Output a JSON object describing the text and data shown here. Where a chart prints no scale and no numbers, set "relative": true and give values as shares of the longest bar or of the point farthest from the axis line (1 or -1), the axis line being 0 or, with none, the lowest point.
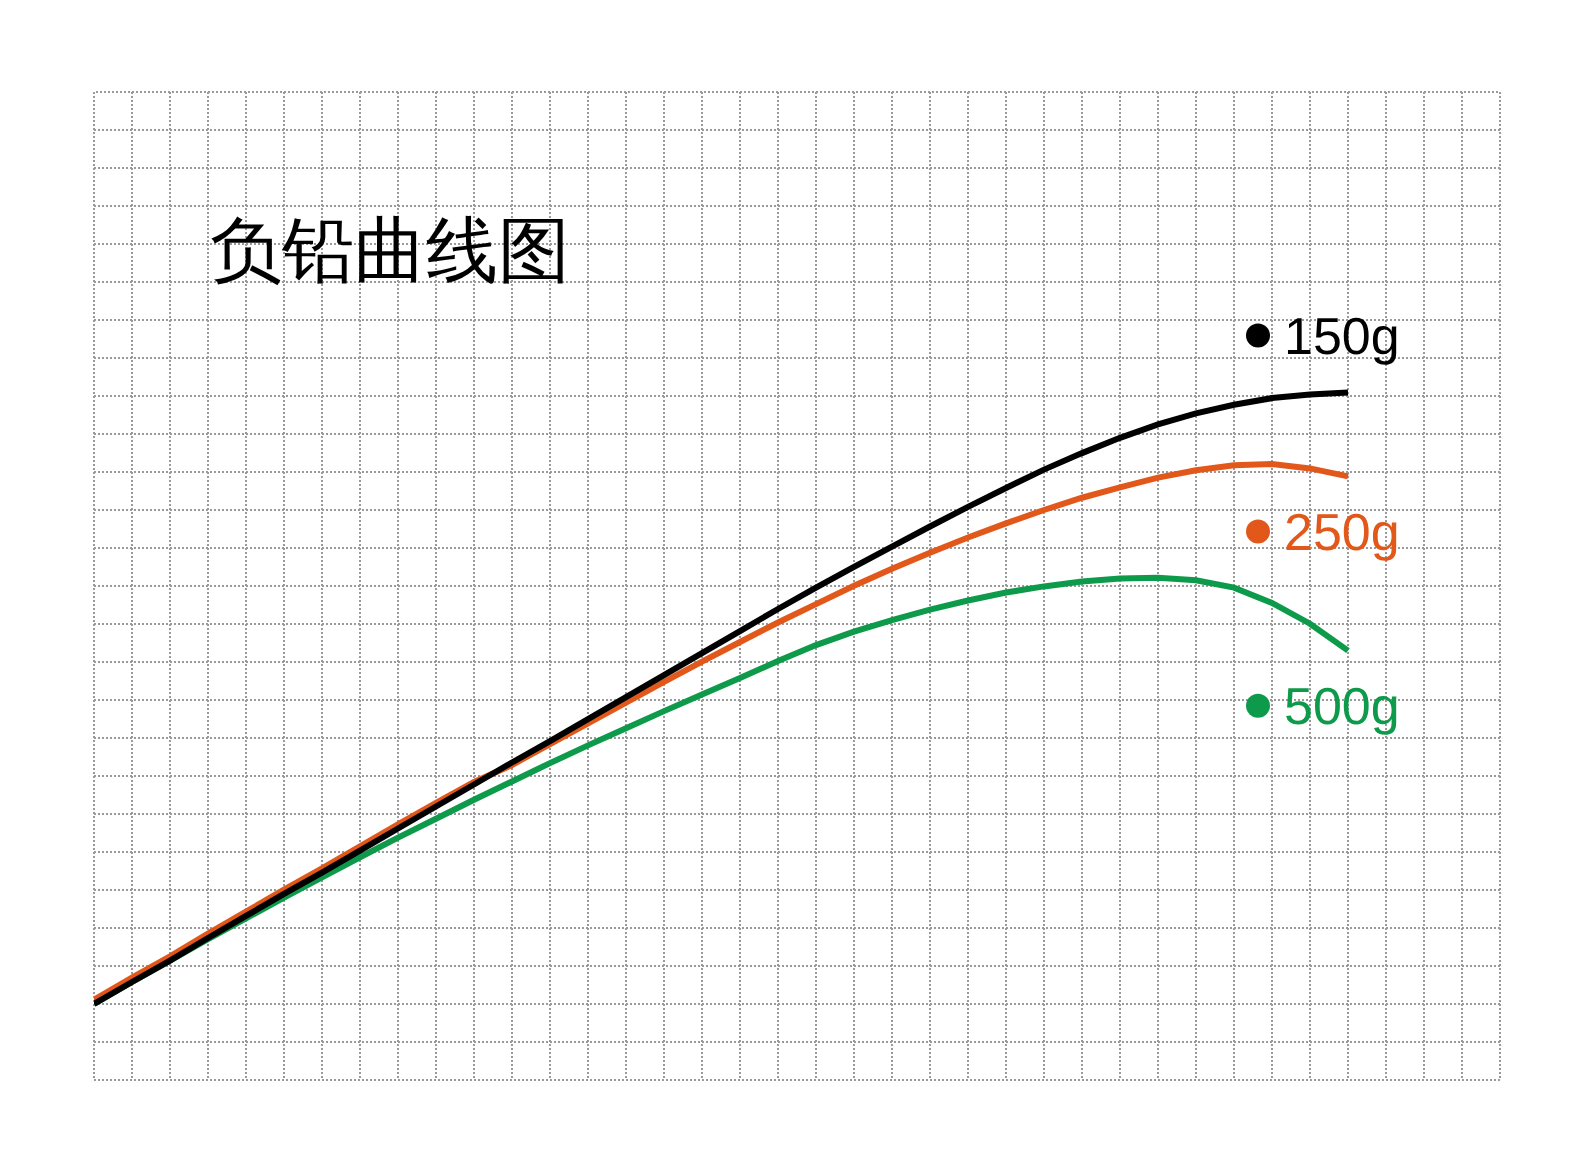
{
  "chart_data": {
    "type": "line",
    "title": "负铅曲线图",
    "relative": true,
    "grid": true,
    "legend": "right",
    "line_style": "solid",
    "categories": [
      null,
      null,
      null,
      null,
      null,
      null,
      null,
      null,
      null,
      null,
      null,
      null,
      null,
      null,
      null,
      null,
      null,
      null,
      null,
      null,
      null,
      null,
      null,
      null,
      null,
      null,
      null,
      null,
      null,
      null,
      null,
      null,
      null,
      null
    ],
    "series": [
      {
        "name": "150g",
        "color": "#000000",
        "values": [
          0,
          0.036,
          0.071,
          0.108,
          0.144,
          0.18,
          0.215,
          0.251,
          0.287,
          0.323,
          0.359,
          0.395,
          0.43,
          0.466,
          0.502,
          0.538,
          0.574,
          0.61,
          0.646,
          0.681,
          0.715,
          0.748,
          0.781,
          0.813,
          0.844,
          0.874,
          0.901,
          0.926,
          0.948,
          0.966,
          0.98,
          0.991,
          0.997,
          1
        ]
      },
      {
        "name": "250g",
        "color": "#e2581a",
        "values": [
          0.007,
          0.043,
          0.078,
          0.115,
          0.151,
          0.187,
          0.222,
          0.258,
          0.294,
          0.329,
          0.363,
          0.391,
          0.425,
          0.459,
          0.493,
          0.527,
          0.56,
          0.592,
          0.624,
          0.654,
          0.684,
          0.712,
          0.738,
          0.763,
          0.786,
          0.808,
          0.828,
          0.845,
          0.861,
          0.873,
          0.881,
          0.883,
          0.876,
          0.863
        ]
      },
      {
        "name": "500g",
        "color": "#0d9a4a",
        "values": [
          0,
          0.036,
          0.071,
          0.106,
          0.14,
          0.174,
          0.207,
          0.24,
          0.272,
          0.303,
          0.334,
          0.364,
          0.394,
          0.423,
          0.451,
          0.479,
          0.506,
          0.533,
          0.561,
          0.587,
          0.609,
          0.628,
          0.645,
          0.66,
          0.673,
          0.683,
          0.691,
          0.696,
          0.697,
          0.693,
          0.681,
          0.656,
          0.622,
          0.578
        ]
      }
    ]
  }
}
